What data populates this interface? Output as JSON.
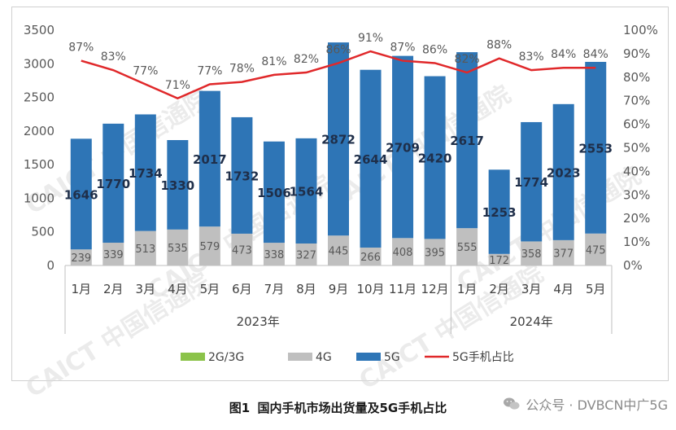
{
  "chart_data": {
    "type": "bar",
    "title": "国内手机市场出货量及5G手机占比",
    "categories": [
      "1月",
      "2月",
      "3月",
      "4月",
      "5月",
      "6月",
      "7月",
      "8月",
      "9月",
      "10月",
      "11月",
      "12月",
      "1月",
      "2月",
      "3月",
      "4月",
      "5月"
    ],
    "year_groups": [
      {
        "label": "2023年",
        "start": 0,
        "end": 11
      },
      {
        "label": "2024年",
        "start": 12,
        "end": 16
      }
    ],
    "series": [
      {
        "name": "2G/3G",
        "color": "#8bc34a",
        "values": [
          0,
          0,
          0,
          0,
          0,
          0,
          0,
          0,
          0,
          0,
          0,
          0,
          0,
          0,
          0,
          0,
          0
        ]
      },
      {
        "name": "4G",
        "color": "#bfbfbf",
        "values": [
          239,
          339,
          513,
          535,
          579,
          473,
          338,
          327,
          445,
          266,
          408,
          395,
          555,
          172,
          358,
          377,
          475
        ]
      },
      {
        "name": "5G",
        "color": "#2e75b6",
        "values": [
          1646,
          1770,
          1734,
          1330,
          2017,
          1732,
          1506,
          1564,
          2872,
          2644,
          2709,
          2420,
          2617,
          1253,
          1774,
          2023,
          2553
        ]
      },
      {
        "name": "5G手机占比",
        "color": "#e0282a",
        "type": "line",
        "axis": "right",
        "values": [
          87,
          83,
          77,
          71,
          77,
          78,
          81,
          82,
          86,
          91,
          87,
          86,
          82,
          88,
          83,
          84,
          84
        ]
      }
    ],
    "ylim": [
      0,
      3500
    ],
    "yticks": [
      0,
      500,
      1000,
      1500,
      2000,
      2500,
      3000,
      3500
    ],
    "y2lim": [
      0,
      100
    ],
    "y2ticks": [
      "0%",
      "10%",
      "20%",
      "30%",
      "40%",
      "50%",
      "60%",
      "70%",
      "80%",
      "90%",
      "100%"
    ],
    "legend_position": "bottom",
    "grid": false
  },
  "caption": {
    "figure_label": "图1",
    "title": "国内手机市场出货量及5G手机占比"
  },
  "source_tag": {
    "icon": "wechat-icon",
    "text": "公众号 · DVBCN中广5G"
  },
  "watermark": "CAICT 中国信通院"
}
